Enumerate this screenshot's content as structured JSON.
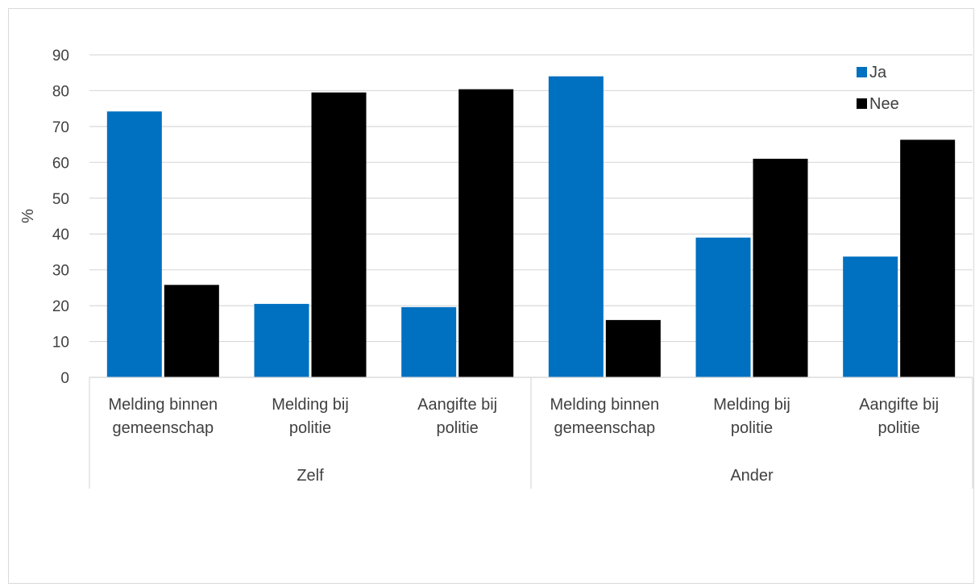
{
  "chart_data": {
    "type": "bar",
    "title": "",
    "ylabel": "%",
    "xlabel": "",
    "ylim": [
      0,
      90
    ],
    "yticks": [
      0,
      10,
      20,
      30,
      40,
      50,
      60,
      70,
      80,
      90
    ],
    "grid": true,
    "legend_position": "top-right",
    "groups": [
      {
        "label": "Zelf",
        "categories": [
          [
            "Melding binnen",
            "gemeenschap"
          ],
          [
            "Melding bij",
            "politie"
          ],
          [
            "Aangifte bij",
            "politie"
          ]
        ]
      },
      {
        "label": "Ander",
        "categories": [
          [
            "Melding binnen",
            "gemeenschap"
          ],
          [
            "Melding bij",
            "politie"
          ],
          [
            "Aangifte bij",
            "politie"
          ]
        ]
      }
    ],
    "series": [
      {
        "name": "Ja",
        "color": "#0070c0",
        "values": [
          74.2,
          20.5,
          19.6,
          84.0,
          39.0,
          33.7
        ]
      },
      {
        "name": "Nee",
        "color": "#000000",
        "values": [
          25.8,
          79.5,
          80.4,
          16.0,
          61.0,
          66.3
        ]
      }
    ]
  }
}
